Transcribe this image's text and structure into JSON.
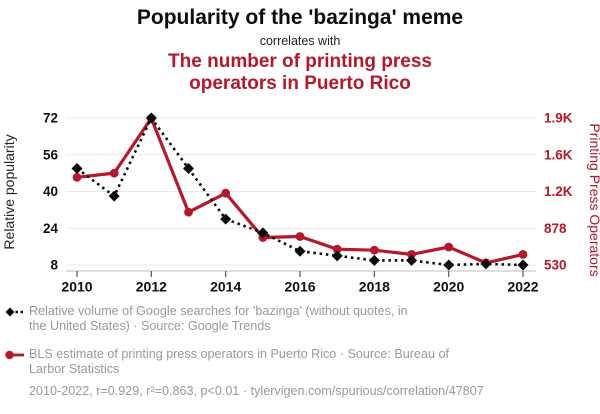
{
  "header": {
    "title": "Popularity of the 'bazinga' meme",
    "connector": "correlates with",
    "subtitle": "The number of printing press operators in Puerto Rico"
  },
  "colors": {
    "accent_red": "#b5182b",
    "series_black": "#0b0b0b",
    "muted_gray": "#999999",
    "gridline": "#e9e9e9"
  },
  "chart_data": {
    "type": "line",
    "x": [
      2010,
      2011,
      2012,
      2013,
      2014,
      2015,
      2016,
      2017,
      2018,
      2019,
      2020,
      2021,
      2022
    ],
    "x_ticks": [
      2010,
      2012,
      2014,
      2016,
      2018,
      2020,
      2022
    ],
    "series": [
      {
        "name": "Relative volume of Google searches for 'bazinga'",
        "axis": "left",
        "color": "#0b0b0b",
        "style": "dashed-diamond",
        "values": [
          50,
          38,
          72,
          50,
          28,
          22,
          14,
          12,
          10,
          10,
          8,
          8.5,
          8
        ]
      },
      {
        "name": "BLS estimate of printing press operators in Puerto Rico",
        "axis": "right",
        "color": "#b5182b",
        "style": "solid-circle",
        "values": [
          1360,
          1400,
          1920,
          1030,
          1210,
          790,
          800,
          680,
          670,
          630,
          700,
          550,
          630
        ]
      }
    ],
    "left_axis": {
      "label": "Relative popularity",
      "ticks": [
        8,
        24,
        40,
        56,
        72
      ],
      "range": [
        8,
        72
      ]
    },
    "right_axis": {
      "label": "Printing Press Operators",
      "tick_labels": [
        "530",
        "878",
        "1.2K",
        "1.6K",
        "1.9K"
      ],
      "tick_values": [
        530,
        878,
        1226,
        1574,
        1922
      ],
      "range": [
        530,
        1922
      ]
    },
    "grid": true,
    "legend_position": "bottom"
  },
  "legend": {
    "items": [
      {
        "marker": "black-diamond-dashed",
        "lines": [
          "Relative volume of Google searches for 'bazinga' (without quotes, in ",
          "the United States) · Source: Google Trends"
        ]
      },
      {
        "marker": "red-circle-solid",
        "lines": [
          "BLS estimate of printing press operators in Puerto Rico · Source: Bureau of ",
          "Larbor Statistics"
        ]
      }
    ]
  },
  "footer": {
    "note": "2010-2022, r=0.929, r²=0.863, p<0.01 · tylervigen.com/spurious/correlation/47807"
  }
}
